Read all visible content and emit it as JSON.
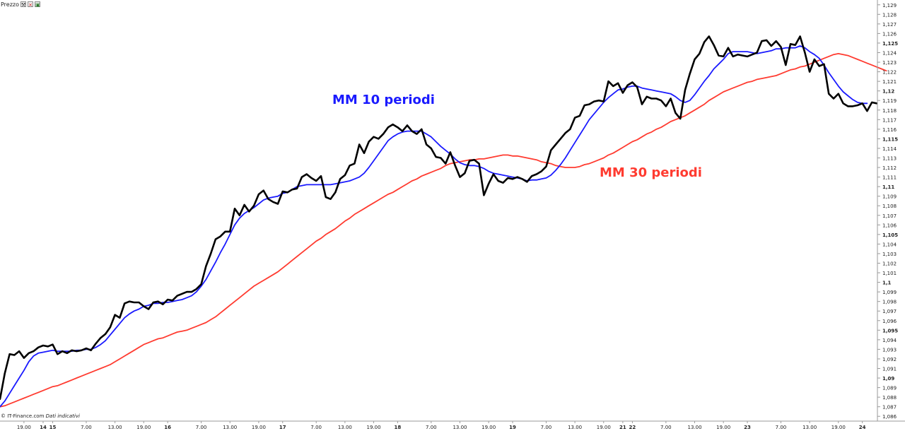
{
  "toolbar": {
    "label": "Prezzo",
    "icons": [
      "wrench-icon",
      "close-icon",
      "maximize-icon"
    ]
  },
  "credit": {
    "source": "© IT-Finance.com",
    "note": "Dati indicativi"
  },
  "annotations": {
    "ma10": "MM 10 periodi",
    "ma30": "MM 30 periodi"
  },
  "colors": {
    "price": "#000000",
    "ma10": "#1a1aff",
    "ma30": "#ff3b30",
    "axis": "#9a9a9a",
    "grid": "#ececec"
  },
  "chart_data": {
    "type": "line",
    "title": "",
    "xlabel": "",
    "ylabel": "",
    "ylim": [
      1.0855,
      1.1295
    ],
    "grid": false,
    "yticks": [
      {
        "v": 1.129,
        "t": "1,129",
        "b": false
      },
      {
        "v": 1.128,
        "t": "1,128",
        "b": false
      },
      {
        "v": 1.127,
        "t": "1,127",
        "b": false
      },
      {
        "v": 1.126,
        "t": "1,126",
        "b": false
      },
      {
        "v": 1.125,
        "t": "1,125",
        "b": true
      },
      {
        "v": 1.124,
        "t": "1,124",
        "b": false
      },
      {
        "v": 1.123,
        "t": "1,123",
        "b": false
      },
      {
        "v": 1.122,
        "t": "1,122",
        "b": false
      },
      {
        "v": 1.121,
        "t": "1,121",
        "b": false
      },
      {
        "v": 1.12,
        "t": "1,12",
        "b": true
      },
      {
        "v": 1.119,
        "t": "1,119",
        "b": false
      },
      {
        "v": 1.118,
        "t": "1,118",
        "b": false
      },
      {
        "v": 1.117,
        "t": "1,117",
        "b": false
      },
      {
        "v": 1.116,
        "t": "1,116",
        "b": false
      },
      {
        "v": 1.115,
        "t": "1,115",
        "b": true
      },
      {
        "v": 1.114,
        "t": "1,114",
        "b": false
      },
      {
        "v": 1.113,
        "t": "1,113",
        "b": false
      },
      {
        "v": 1.112,
        "t": "1,112",
        "b": false
      },
      {
        "v": 1.111,
        "t": "1,111",
        "b": false
      },
      {
        "v": 1.11,
        "t": "1,11",
        "b": true
      },
      {
        "v": 1.109,
        "t": "1,109",
        "b": false
      },
      {
        "v": 1.108,
        "t": "1,108",
        "b": false
      },
      {
        "v": 1.107,
        "t": "1,107",
        "b": false
      },
      {
        "v": 1.106,
        "t": "1,106",
        "b": false
      },
      {
        "v": 1.105,
        "t": "1,105",
        "b": true
      },
      {
        "v": 1.104,
        "t": "1,104",
        "b": false
      },
      {
        "v": 1.103,
        "t": "1,103",
        "b": false
      },
      {
        "v": 1.102,
        "t": "1,102",
        "b": false
      },
      {
        "v": 1.101,
        "t": "1,101",
        "b": false
      },
      {
        "v": 1.1,
        "t": "1,1",
        "b": true
      },
      {
        "v": 1.099,
        "t": "1,099",
        "b": false
      },
      {
        "v": 1.098,
        "t": "1,098",
        "b": false
      },
      {
        "v": 1.097,
        "t": "1,097",
        "b": false
      },
      {
        "v": 1.096,
        "t": "1,096",
        "b": false
      },
      {
        "v": 1.095,
        "t": "1,095",
        "b": true
      },
      {
        "v": 1.094,
        "t": "1,094",
        "b": false
      },
      {
        "v": 1.093,
        "t": "1,093",
        "b": false
      },
      {
        "v": 1.092,
        "t": "1,092",
        "b": false
      },
      {
        "v": 1.091,
        "t": "1,091",
        "b": false
      },
      {
        "v": 1.09,
        "t": "1,09",
        "b": true
      },
      {
        "v": 1.089,
        "t": "1,089",
        "b": false
      },
      {
        "v": 1.088,
        "t": "1,088",
        "b": false
      },
      {
        "v": 1.087,
        "t": "1,087",
        "b": false
      },
      {
        "v": 1.086,
        "t": "1,086",
        "b": false
      }
    ],
    "xticks": [
      {
        "i": 5,
        "t": "19.00",
        "b": false
      },
      {
        "i": 9,
        "t": "14",
        "b": true
      },
      {
        "i": 11,
        "t": "15",
        "b": true
      },
      {
        "i": 18,
        "t": "7.00",
        "b": false
      },
      {
        "i": 24,
        "t": "13.00",
        "b": false
      },
      {
        "i": 30,
        "t": "19.00",
        "b": false
      },
      {
        "i": 35,
        "t": "16",
        "b": true
      },
      {
        "i": 42,
        "t": "7.00",
        "b": false
      },
      {
        "i": 48,
        "t": "13.00",
        "b": false
      },
      {
        "i": 54,
        "t": "19.00",
        "b": false
      },
      {
        "i": 59,
        "t": "17",
        "b": true
      },
      {
        "i": 66,
        "t": "7.00",
        "b": false
      },
      {
        "i": 72,
        "t": "13.00",
        "b": false
      },
      {
        "i": 78,
        "t": "19.00",
        "b": false
      },
      {
        "i": 83,
        "t": "18",
        "b": true
      },
      {
        "i": 90,
        "t": "7.00",
        "b": false
      },
      {
        "i": 96,
        "t": "13.00",
        "b": false
      },
      {
        "i": 102,
        "t": "19.00",
        "b": false
      },
      {
        "i": 107,
        "t": "19",
        "b": true
      },
      {
        "i": 114,
        "t": "7.00",
        "b": false
      },
      {
        "i": 120,
        "t": "13.00",
        "b": false
      },
      {
        "i": 126,
        "t": "19.00",
        "b": false
      },
      {
        "i": 130,
        "t": "21",
        "b": true
      },
      {
        "i": 132,
        "t": "22",
        "b": true
      },
      {
        "i": 139,
        "t": "7.00",
        "b": false
      },
      {
        "i": 145,
        "t": "13.00",
        "b": false
      },
      {
        "i": 151,
        "t": "19.00",
        "b": false
      },
      {
        "i": 156,
        "t": "23",
        "b": true
      },
      {
        "i": 163,
        "t": "7.00",
        "b": false
      },
      {
        "i": 169,
        "t": "13.00",
        "b": false
      },
      {
        "i": 175,
        "t": "19.00",
        "b": false
      },
      {
        "i": 180,
        "t": "24",
        "b": true
      }
    ],
    "series": [
      {
        "key": "price",
        "values": [
          1.0878,
          1.0905,
          1.0925,
          1.0924,
          1.0928,
          1.0921,
          1.0926,
          1.0928,
          1.0932,
          1.0934,
          1.0933,
          1.0935,
          1.0925,
          1.0928,
          1.0926,
          1.0929,
          1.0928,
          1.0929,
          1.0931,
          1.0929,
          1.0936,
          1.0942,
          1.0946,
          1.0953,
          1.0966,
          1.0963,
          1.0978,
          1.098,
          1.0979,
          1.0979,
          1.0975,
          1.0972,
          1.0979,
          1.098,
          1.0977,
          1.0982,
          1.0981,
          1.0986,
          1.0988,
          1.099,
          1.099,
          1.0993,
          1.0998,
          1.1017,
          1.103,
          1.1045,
          1.1048,
          1.1053,
          1.1053,
          1.1077,
          1.107,
          1.1081,
          1.1074,
          1.108,
          1.1092,
          1.1096,
          1.1087,
          1.1084,
          1.1082,
          1.1095,
          1.1094,
          1.1097,
          1.1098,
          1.111,
          1.1113,
          1.1109,
          1.1106,
          1.1111,
          1.1089,
          1.1087,
          1.1094,
          1.1108,
          1.1112,
          1.1122,
          1.1124,
          1.1144,
          1.1135,
          1.1147,
          1.1152,
          1.115,
          1.1155,
          1.1162,
          1.1165,
          1.1162,
          1.1158,
          1.1164,
          1.1158,
          1.1155,
          1.116,
          1.1144,
          1.114,
          1.1131,
          1.113,
          1.1124,
          1.1136,
          1.1122,
          1.111,
          1.1114,
          1.1127,
          1.1128,
          1.1124,
          1.1091,
          1.1103,
          1.1113,
          1.1106,
          1.1104,
          1.1109,
          1.1108,
          1.111,
          1.1108,
          1.1105,
          1.1111,
          1.1113,
          1.1116,
          1.1121,
          1.1138,
          1.1144,
          1.115,
          1.1156,
          1.116,
          1.1172,
          1.1174,
          1.1185,
          1.1186,
          1.1189,
          1.119,
          1.1189,
          1.121,
          1.1205,
          1.1208,
          1.1198,
          1.1206,
          1.1209,
          1.1204,
          1.1186,
          1.1194,
          1.1192,
          1.1192,
          1.119,
          1.1184,
          1.1192,
          1.1177,
          1.1171,
          1.1201,
          1.1218,
          1.1233,
          1.1239,
          1.1251,
          1.1257,
          1.1248,
          1.1237,
          1.1236,
          1.1245,
          1.1236,
          1.1238,
          1.1237,
          1.1236,
          1.1238,
          1.124,
          1.1252,
          1.1253,
          1.1247,
          1.1252,
          1.1246,
          1.1227,
          1.1249,
          1.1248,
          1.1257,
          1.124,
          1.122,
          1.1233,
          1.1226,
          1.1228,
          1.1197,
          1.1192,
          1.1197,
          1.1187,
          1.1184,
          1.1184,
          1.1185,
          1.1187,
          1.1179,
          1.1188,
          1.1187
        ]
      },
      {
        "key": "ma10",
        "values": [
          1.087,
          1.0876,
          1.0884,
          1.0892,
          1.09,
          1.0908,
          1.0917,
          1.0923,
          1.0926,
          1.0927,
          1.0928,
          1.0929,
          1.0928,
          1.0928,
          1.0928,
          1.0928,
          1.0929,
          1.0929,
          1.093,
          1.093,
          1.0932,
          1.0935,
          1.0939,
          1.0945,
          1.0951,
          1.0957,
          1.0963,
          1.0967,
          1.097,
          1.0972,
          1.0975,
          1.0976,
          1.0978,
          1.0978,
          1.0979,
          1.0979,
          1.098,
          1.0981,
          1.0982,
          1.0984,
          1.0986,
          1.099,
          1.0996,
          1.1003,
          1.1012,
          1.1021,
          1.1031,
          1.104,
          1.105,
          1.106,
          1.1067,
          1.1072,
          1.1075,
          1.1078,
          1.1082,
          1.1086,
          1.1088,
          1.1089,
          1.109,
          1.1093,
          1.1094,
          1.1097,
          1.11,
          1.1101,
          1.1102,
          1.1102,
          1.1102,
          1.1102,
          1.1102,
          1.1102,
          1.1103,
          1.1104,
          1.1105,
          1.1106,
          1.1108,
          1.111,
          1.1114,
          1.112,
          1.1127,
          1.1134,
          1.1141,
          1.1148,
          1.1152,
          1.1155,
          1.1157,
          1.1158,
          1.1158,
          1.1158,
          1.1158,
          1.1155,
          1.1152,
          1.1147,
          1.1142,
          1.1138,
          1.1134,
          1.1129,
          1.1125,
          1.1123,
          1.1122,
          1.1122,
          1.1121,
          1.1119,
          1.1116,
          1.1114,
          1.1113,
          1.1112,
          1.1111,
          1.111,
          1.1109,
          1.1108,
          1.1106,
          1.1107,
          1.1107,
          1.1108,
          1.1109,
          1.1112,
          1.1117,
          1.1123,
          1.113,
          1.1138,
          1.1146,
          1.1154,
          1.1162,
          1.117,
          1.1176,
          1.1182,
          1.1188,
          1.1193,
          1.1197,
          1.1201,
          1.1202,
          1.1204,
          1.1205,
          1.1205,
          1.1203,
          1.1202,
          1.1201,
          1.12,
          1.1199,
          1.1198,
          1.1197,
          1.1194,
          1.119,
          1.1188,
          1.119,
          1.1196,
          1.1203,
          1.121,
          1.1216,
          1.1223,
          1.1228,
          1.1233,
          1.1239,
          1.1241,
          1.1241,
          1.1241,
          1.1241,
          1.124,
          1.1239,
          1.124,
          1.1241,
          1.1242,
          1.1244,
          1.1244,
          1.1245,
          1.1245,
          1.1245,
          1.1247,
          1.1245,
          1.1241,
          1.1238,
          1.1234,
          1.1227,
          1.1219,
          1.1212,
          1.1205,
          1.1199,
          1.1195,
          1.1191,
          1.1188,
          1.1187,
          1.1187
        ]
      },
      {
        "key": "ma30",
        "values": [
          1.087,
          1.0871,
          1.0873,
          1.0875,
          1.0877,
          1.0879,
          1.0881,
          1.0883,
          1.0885,
          1.0887,
          1.0889,
          1.0891,
          1.0892,
          1.0894,
          1.0896,
          1.0898,
          1.09,
          1.0902,
          1.0904,
          1.0906,
          1.0908,
          1.091,
          1.0912,
          1.0914,
          1.0917,
          1.092,
          1.0923,
          1.0926,
          1.0929,
          1.0932,
          1.0935,
          1.0937,
          1.0939,
          1.0941,
          1.0942,
          1.0944,
          1.0946,
          1.0948,
          1.0949,
          1.095,
          1.0952,
          1.0954,
          1.0956,
          1.0958,
          1.0961,
          1.0964,
          1.0968,
          1.0972,
          1.0976,
          1.098,
          1.0984,
          1.0988,
          1.0992,
          1.0996,
          1.0999,
          1.1002,
          1.1005,
          1.1008,
          1.1011,
          1.1015,
          1.1019,
          1.1023,
          1.1027,
          1.1031,
          1.1035,
          1.1039,
          1.1043,
          1.1046,
          1.105,
          1.1053,
          1.1056,
          1.106,
          1.1064,
          1.1067,
          1.1071,
          1.1074,
          1.1077,
          1.108,
          1.1083,
          1.1086,
          1.1089,
          1.1092,
          1.1094,
          1.1097,
          1.11,
          1.1103,
          1.1106,
          1.1108,
          1.1111,
          1.1113,
          1.1115,
          1.1117,
          1.1119,
          1.1122,
          1.1124,
          1.1125,
          1.1126,
          1.1127,
          1.1128,
          1.1128,
          1.1129,
          1.1129,
          1.113,
          1.1131,
          1.1132,
          1.1133,
          1.1133,
          1.1132,
          1.1132,
          1.1131,
          1.113,
          1.1129,
          1.1128,
          1.1126,
          1.1125,
          1.1124,
          1.1122,
          1.1121,
          1.112,
          1.112,
          1.112,
          1.1121,
          1.1123,
          1.1124,
          1.1126,
          1.1128,
          1.113,
          1.1133,
          1.1135,
          1.1138,
          1.1141,
          1.1144,
          1.1147,
          1.1149,
          1.1152,
          1.1155,
          1.1157,
          1.116,
          1.1162,
          1.1165,
          1.1168,
          1.117,
          1.1172,
          1.1174,
          1.1177,
          1.118,
          1.1183,
          1.1186,
          1.119,
          1.1193,
          1.1196,
          1.1199,
          1.1201,
          1.1203,
          1.1205,
          1.1207,
          1.1209,
          1.121,
          1.1212,
          1.1213,
          1.1214,
          1.1215,
          1.1216,
          1.1218,
          1.122,
          1.1222,
          1.1223,
          1.1225,
          1.1226,
          1.1228,
          1.123,
          1.1232,
          1.1234,
          1.1236,
          1.1238,
          1.1239,
          1.1238,
          1.1237,
          1.1235,
          1.1233,
          1.1231,
          1.1229,
          1.1227,
          1.1225,
          1.1223,
          1.1221
        ]
      }
    ]
  }
}
